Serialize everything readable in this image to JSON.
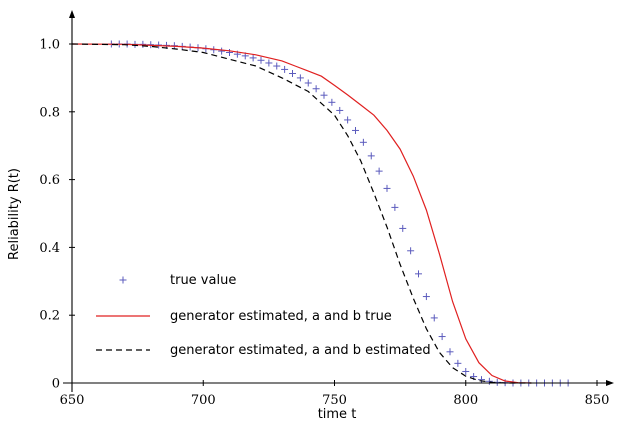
{
  "chart_data": {
    "type": "line",
    "xlabel": "time t",
    "ylabel": "Reliability R(t)",
    "xlim": [
      650,
      850
    ],
    "ylim": [
      0,
      1.0
    ],
    "xticks": [
      "650",
      "700",
      "750",
      "800",
      "850"
    ],
    "yticks": [
      "0",
      "0.2",
      "0.4",
      "0.6",
      "0.8",
      "1.0"
    ],
    "xtick_values": [
      650,
      700,
      750,
      800,
      850
    ],
    "ytick_values": [
      0,
      0.2,
      0.4,
      0.6,
      0.8,
      1.0
    ],
    "grid": false,
    "legend_position": "lower-left",
    "series": [
      {
        "name": "true value",
        "style": "plus-markers",
        "color": "#5b5bbd",
        "x": [
          665,
          668,
          671,
          674,
          677,
          680,
          683,
          686,
          689,
          692,
          695,
          698,
          701,
          704,
          707,
          710,
          713,
          716,
          719,
          722,
          725,
          728,
          731,
          734,
          737,
          740,
          743,
          746,
          749,
          752,
          755,
          758,
          761,
          764,
          767,
          770,
          773,
          776,
          779,
          782,
          785,
          788,
          791,
          794,
          797,
          800,
          803,
          806,
          809,
          812,
          815,
          818,
          821,
          824,
          827,
          830,
          833,
          836,
          839
        ],
        "y": [
          1.0,
          1.0,
          1.0,
          0.999,
          0.999,
          0.998,
          0.997,
          0.996,
          0.995,
          0.993,
          0.991,
          0.989,
          0.986,
          0.983,
          0.979,
          0.975,
          0.97,
          0.965,
          0.959,
          0.952,
          0.944,
          0.935,
          0.925,
          0.913,
          0.9,
          0.885,
          0.868,
          0.849,
          0.828,
          0.804,
          0.776,
          0.745,
          0.71,
          0.67,
          0.625,
          0.574,
          0.518,
          0.456,
          0.39,
          0.322,
          0.255,
          0.192,
          0.137,
          0.092,
          0.058,
          0.034,
          0.019,
          0.01,
          0.005,
          0.002,
          0.001,
          0.0,
          0.0,
          0.0,
          0.0,
          0.0,
          0.0,
          0.0,
          0.0
        ]
      },
      {
        "name": "generator estimated, a and b true",
        "style": "solid",
        "color": "#e02020",
        "x": [
          650,
          670,
          690,
          700,
          710,
          720,
          730,
          735,
          740,
          745,
          750,
          755,
          760,
          765,
          770,
          775,
          780,
          785,
          790,
          795,
          800,
          805,
          810,
          815,
          820,
          825
        ],
        "y": [
          1.0,
          0.999,
          0.993,
          0.988,
          0.98,
          0.968,
          0.95,
          0.935,
          0.92,
          0.905,
          0.878,
          0.85,
          0.82,
          0.79,
          0.745,
          0.69,
          0.61,
          0.51,
          0.38,
          0.24,
          0.13,
          0.06,
          0.022,
          0.006,
          0.001,
          0.0
        ]
      },
      {
        "name": "generator estimated, a and b estimated",
        "style": "dashed",
        "color": "#000000",
        "x": [
          650,
          670,
          680,
          690,
          700,
          710,
          720,
          730,
          740,
          750,
          755,
          760,
          765,
          770,
          775,
          780,
          785,
          790,
          795,
          800,
          805,
          810,
          815,
          820,
          825
        ],
        "y": [
          1.0,
          0.998,
          0.993,
          0.985,
          0.975,
          0.955,
          0.935,
          0.9,
          0.86,
          0.79,
          0.73,
          0.655,
          0.56,
          0.46,
          0.35,
          0.25,
          0.16,
          0.09,
          0.045,
          0.02,
          0.007,
          0.002,
          0.0,
          0.0,
          0.0
        ]
      }
    ]
  }
}
